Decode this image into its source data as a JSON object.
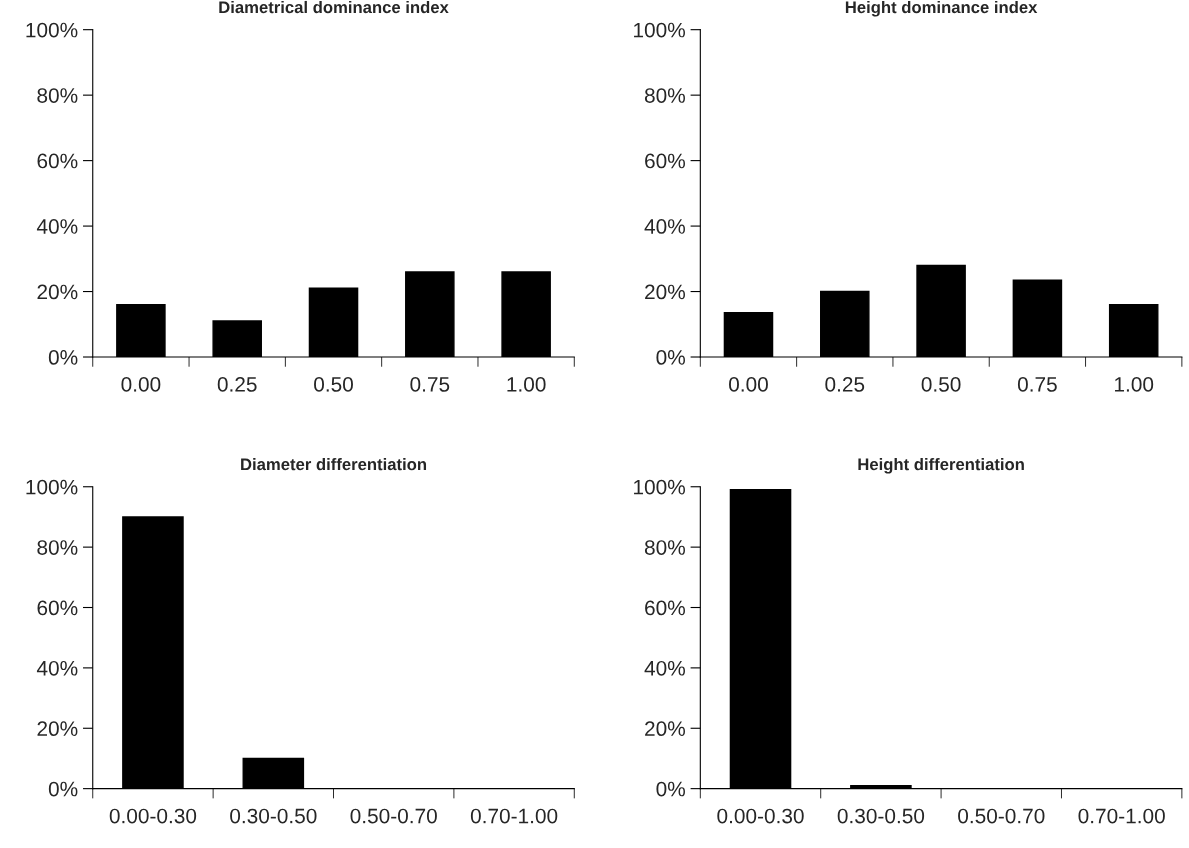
{
  "chart_data": [
    {
      "type": "bar",
      "title": "Diametrical dominance index",
      "categories": [
        "0.00",
        "0.25",
        "0.50",
        "0.75",
        "1.00"
      ],
      "values": [
        16,
        11,
        21,
        26,
        26
      ],
      "color": "#000000",
      "ylim": [
        0,
        100
      ],
      "yticks": [
        {
          "value": 0,
          "label": "0%"
        },
        {
          "value": 20,
          "label": "20%"
        },
        {
          "value": 40,
          "label": "40%"
        },
        {
          "value": 60,
          "label": "60%"
        },
        {
          "value": 80,
          "label": "80%"
        },
        {
          "value": 100,
          "label": "100%"
        }
      ],
      "grid": false,
      "legend": false
    },
    {
      "type": "bar",
      "title": "Height dominance index",
      "categories": [
        "0.00",
        "0.25",
        "0.50",
        "0.75",
        "1.00"
      ],
      "values": [
        13.5,
        20,
        28,
        23.5,
        16
      ],
      "color": "#000000",
      "ylim": [
        0,
        100
      ],
      "yticks": [
        {
          "value": 0,
          "label": "0%"
        },
        {
          "value": 20,
          "label": "20%"
        },
        {
          "value": 40,
          "label": "40%"
        },
        {
          "value": 60,
          "label": "60%"
        },
        {
          "value": 80,
          "label": "80%"
        },
        {
          "value": 100,
          "label": "100%"
        }
      ],
      "grid": false,
      "legend": false
    },
    {
      "type": "bar",
      "title": "Diameter differentiation",
      "categories": [
        "0.00-0.30",
        "0.30-0.50",
        "0.50-0.70",
        "0.70-1.00"
      ],
      "values": [
        90,
        10,
        0,
        0
      ],
      "color": "#000000",
      "ylim": [
        0,
        100
      ],
      "yticks": [
        {
          "value": 0,
          "label": "0%"
        },
        {
          "value": 20,
          "label": "20%"
        },
        {
          "value": 40,
          "label": "40%"
        },
        {
          "value": 60,
          "label": "60%"
        },
        {
          "value": 80,
          "label": "80%"
        },
        {
          "value": 100,
          "label": "100%"
        }
      ],
      "grid": false,
      "legend": false
    },
    {
      "type": "bar",
      "title": "Height differentiation",
      "categories": [
        "0.00-0.30",
        "0.30-0.50",
        "0.50-0.70",
        "0.70-1.00"
      ],
      "values": [
        99,
        1,
        0,
        0
      ],
      "color": "#000000",
      "ylim": [
        0,
        100
      ],
      "yticks": [
        {
          "value": 0,
          "label": "0%"
        },
        {
          "value": 20,
          "label": "20%"
        },
        {
          "value": 40,
          "label": "40%"
        },
        {
          "value": 60,
          "label": "60%"
        },
        {
          "value": 80,
          "label": "80%"
        },
        {
          "value": 100,
          "label": "100%"
        }
      ],
      "grid": false,
      "legend": false
    }
  ]
}
